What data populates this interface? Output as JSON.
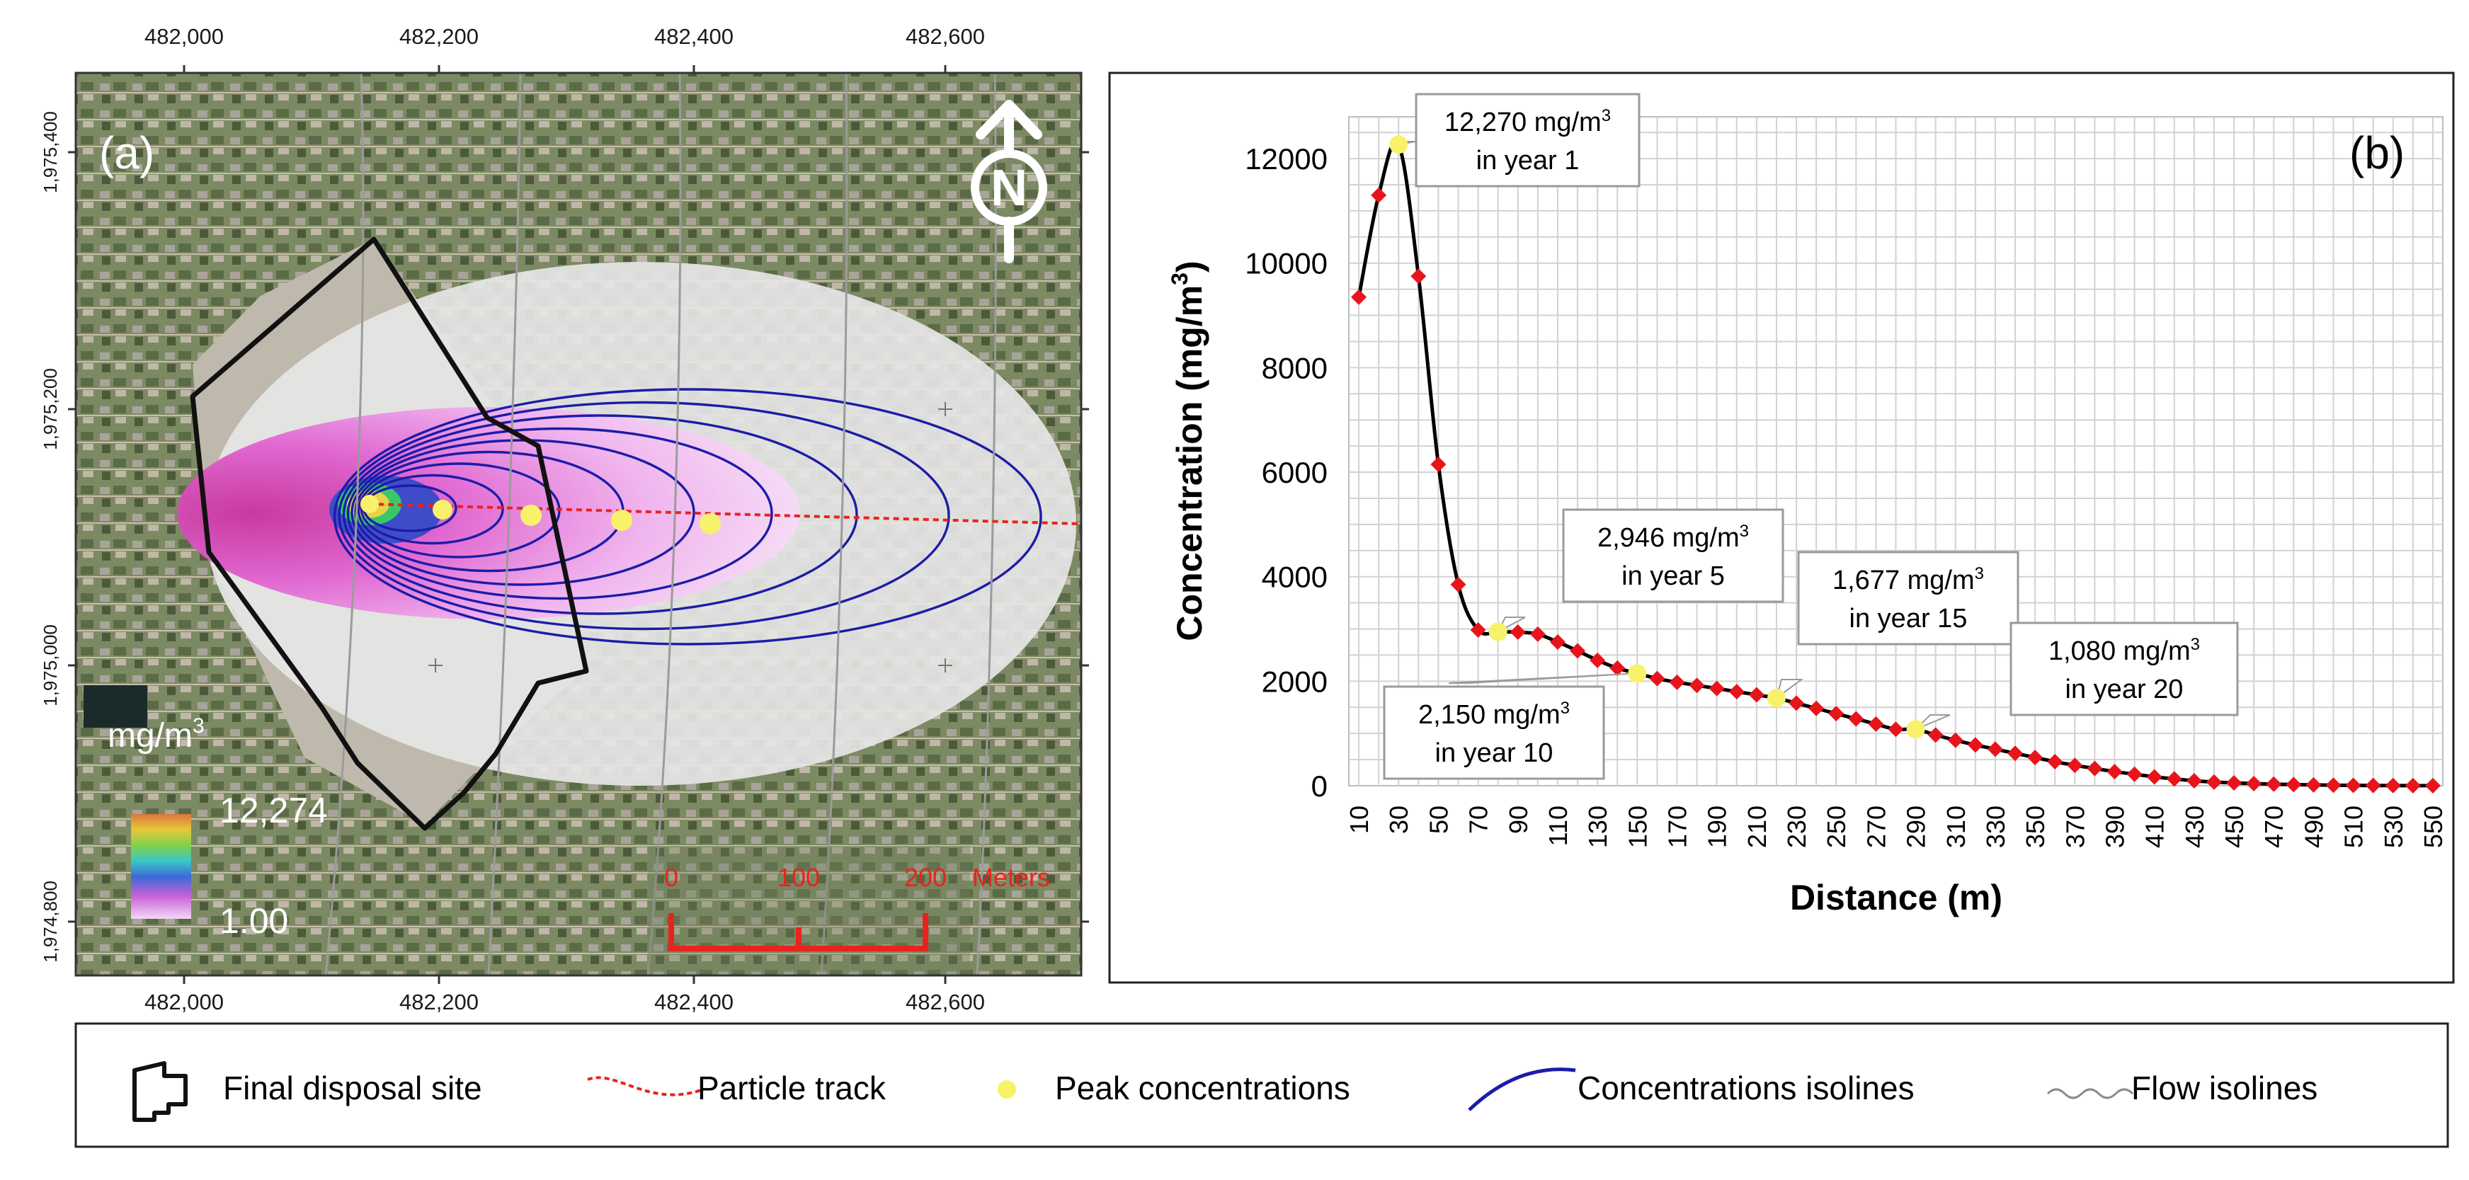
{
  "panel_a": {
    "label": "(a)",
    "north_letter": "N",
    "x_ticks": [
      "482,000",
      "482,200",
      "482,400",
      "482,600"
    ],
    "y_ticks": [
      "1,975,400",
      "1,975,200",
      "1,975,000",
      "1,974,800"
    ],
    "colorbar": {
      "title": "mg/m",
      "title_sup": "3",
      "max_label": "12,274",
      "min_label": "1.00"
    },
    "scale_bar": {
      "labels": [
        "0",
        "100",
        "200"
      ],
      "unit": "Meters"
    },
    "peak_points": 5,
    "colors": {
      "isoline": "#1c1ca8",
      "particle_track": "#e8231c",
      "peak": "#f7f26a",
      "scale": "#e8231c",
      "site": "#111111"
    }
  },
  "chart_data": {
    "type": "line",
    "panel_label": "(b)",
    "xlabel": "Distance (m)",
    "ylabel": "Concentration (mg/m",
    "ylabel_sup": "3",
    "ylabel_end": ")",
    "xlim": [
      5,
      555
    ],
    "ylim": [
      0,
      12800
    ],
    "x_tick_labels": [
      "10",
      "30",
      "50",
      "70",
      "90",
      "110",
      "130",
      "150",
      "170",
      "190",
      "210",
      "230",
      "250",
      "270",
      "290",
      "310",
      "330",
      "350",
      "370",
      "390",
      "410",
      "430",
      "450",
      "470",
      "490",
      "510",
      "530",
      "550"
    ],
    "y_tick_labels": [
      "0",
      "2000",
      "4000",
      "6000",
      "8000",
      "10000",
      "12000"
    ],
    "series": [
      {
        "name": "Concentration",
        "marker_color": "#e8141c",
        "x": [
          10,
          20,
          30,
          40,
          50,
          60,
          70,
          80,
          90,
          100,
          110,
          120,
          130,
          140,
          150,
          160,
          170,
          180,
          190,
          200,
          210,
          220,
          230,
          240,
          250,
          260,
          270,
          280,
          290,
          300,
          310,
          320,
          330,
          340,
          350,
          360,
          370,
          380,
          390,
          400,
          410,
          420,
          430,
          440,
          450,
          460,
          470,
          480,
          490,
          500,
          510,
          520,
          530,
          540,
          550
        ],
        "values": [
          9350,
          11300,
          12270,
          9750,
          6150,
          3850,
          2980,
          2946,
          2940,
          2900,
          2750,
          2580,
          2400,
          2250,
          2150,
          2050,
          1980,
          1920,
          1860,
          1800,
          1740,
          1677,
          1580,
          1480,
          1380,
          1280,
          1180,
          1080,
          1080,
          970,
          870,
          780,
          700,
          620,
          540,
          460,
          390,
          330,
          270,
          220,
          170,
          130,
          95,
          70,
          55,
          40,
          30,
          22,
          15,
          10,
          7,
          5,
          3,
          2,
          1
        ]
      }
    ],
    "peaks": [
      {
        "x": 30,
        "y": 12270,
        "line1": "12,270 mg/m",
        "sup": "3",
        "line2": "in year 1"
      },
      {
        "x": 80,
        "y": 2946,
        "line1": "2,946 mg/m",
        "sup": "3",
        "line2": "in year 5"
      },
      {
        "x": 150,
        "y": 2150,
        "line1": "2,150 mg/m",
        "sup": "3",
        "line2": "in year 10"
      },
      {
        "x": 220,
        "y": 1677,
        "line1": "1,677 mg/m",
        "sup": "3",
        "line2": "in year 15"
      },
      {
        "x": 290,
        "y": 1080,
        "line1": "1,080 mg/m",
        "sup": "3",
        "line2": "in year 20"
      }
    ]
  },
  "legend": {
    "items": [
      "Final disposal site",
      "Particle track",
      "Peak concentrations",
      "Concentrations isolines",
      "Flow isolines"
    ]
  }
}
